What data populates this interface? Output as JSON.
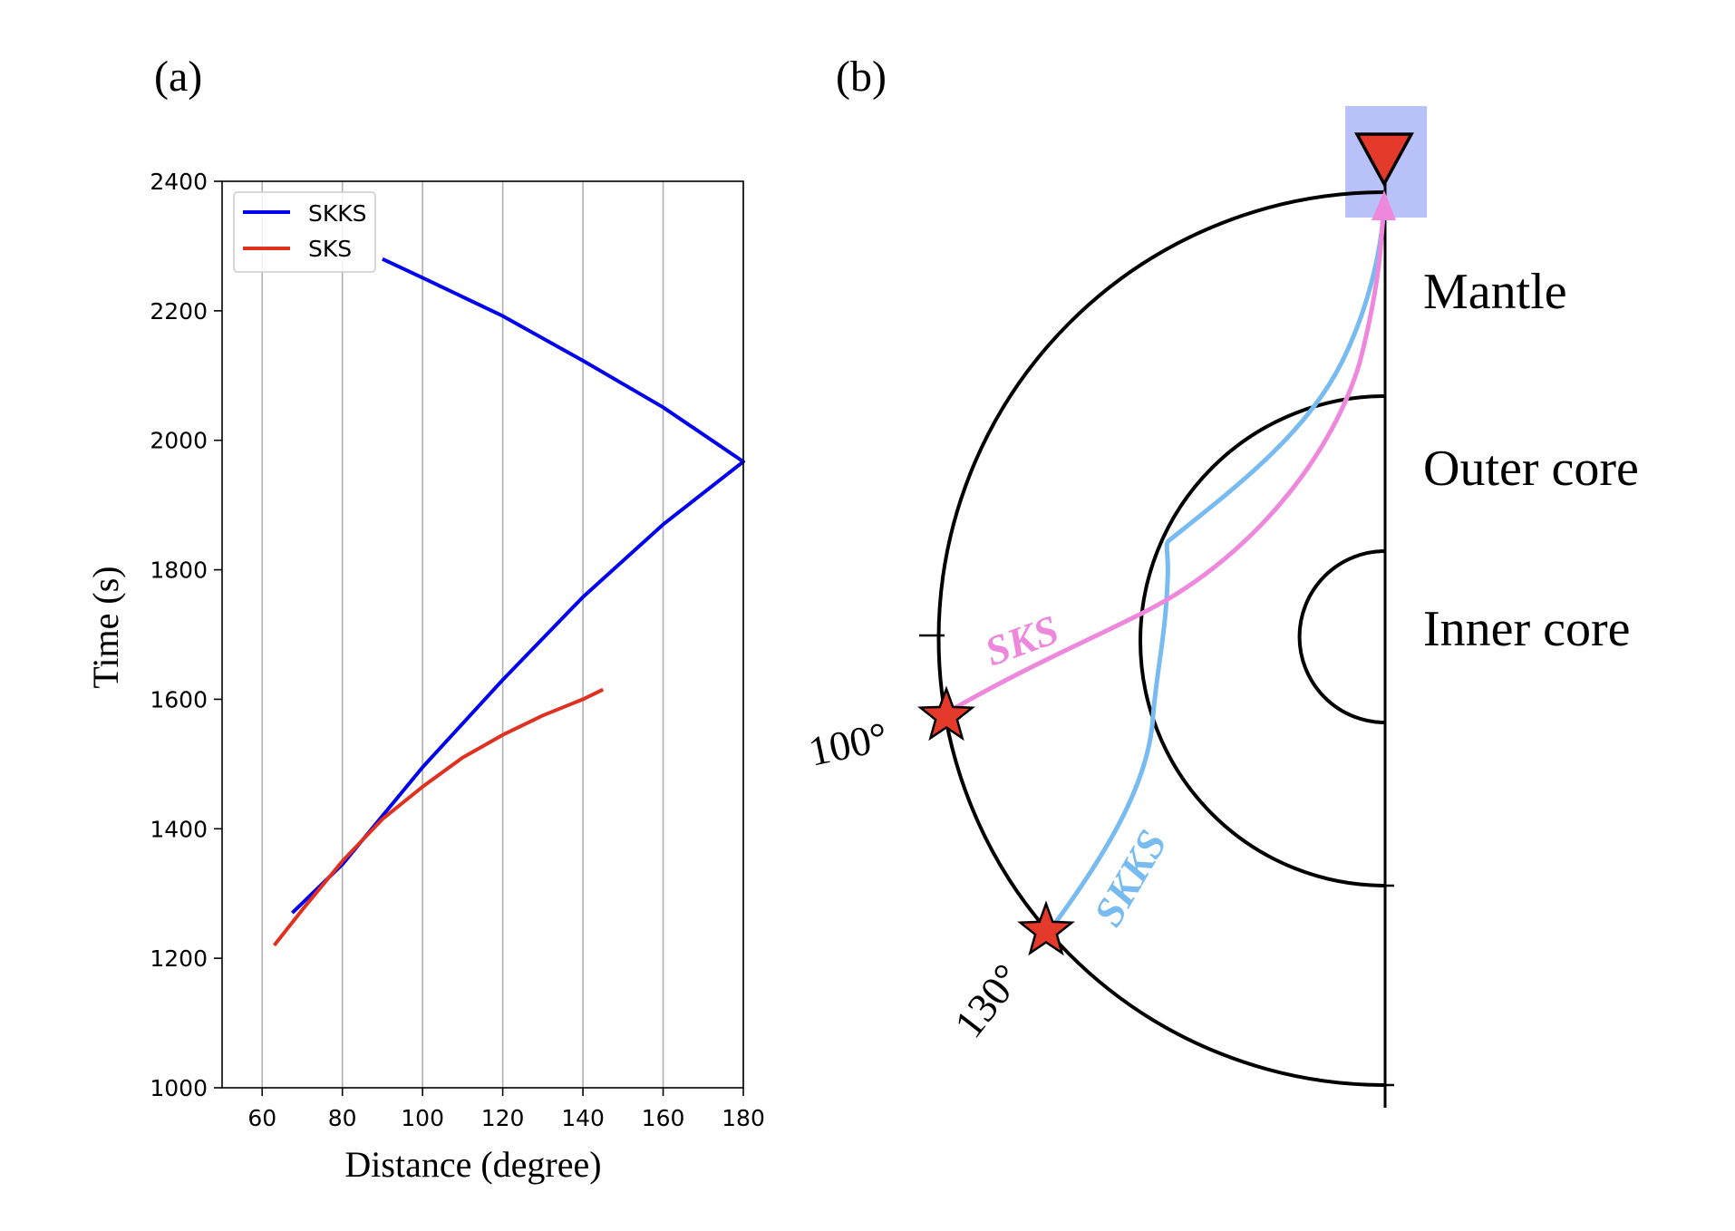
{
  "panel_a": {
    "label": "(a)",
    "chart_data": {
      "type": "line",
      "xlabel": "Distance (degree)",
      "ylabel": "Time (s)",
      "xlim": [
        50,
        180
      ],
      "ylim": [
        1000,
        2400
      ],
      "x_ticks": [
        60,
        80,
        100,
        120,
        140,
        160,
        180
      ],
      "y_ticks": [
        1000,
        1200,
        1400,
        1600,
        1800,
        2000,
        2200,
        2400
      ],
      "grid": "vertical",
      "legend": "top-left",
      "series": [
        {
          "name": "SKKS",
          "color": "#0000ee",
          "x": [
            67.5,
            80,
            100,
            120,
            140,
            160,
            180,
            160,
            140,
            120,
            100,
            90
          ],
          "y": [
            1270,
            1345,
            1495,
            1630,
            1758,
            1870,
            1967,
            2051,
            2123,
            2192,
            2251,
            2280
          ]
        },
        {
          "name": "SKS",
          "color": "#e03020",
          "x": [
            63,
            70,
            80,
            90,
            100,
            110,
            120,
            130,
            140,
            145
          ],
          "y": [
            1220,
            1275,
            1350,
            1415,
            1465,
            1510,
            1545,
            1575,
            1600,
            1615
          ]
        }
      ]
    }
  },
  "panel_b": {
    "label": "(b)",
    "layers": {
      "mantle": "Mantle",
      "outer_core": "Outer core",
      "inner_core": "Inner core"
    },
    "ray_labels": {
      "sks": "SKS",
      "skks": "SKKS"
    },
    "distance_labels": {
      "d100": "100°",
      "d130": "130°"
    },
    "colors": {
      "sks_ray": "#ee88dd",
      "skks_ray": "#77bbf0",
      "star": "#e43a2c",
      "station": "#e43a2c",
      "station_highlight": "#b8c2f8"
    },
    "icons": {
      "source": "star-icon",
      "station": "triangle-down-icon"
    }
  }
}
